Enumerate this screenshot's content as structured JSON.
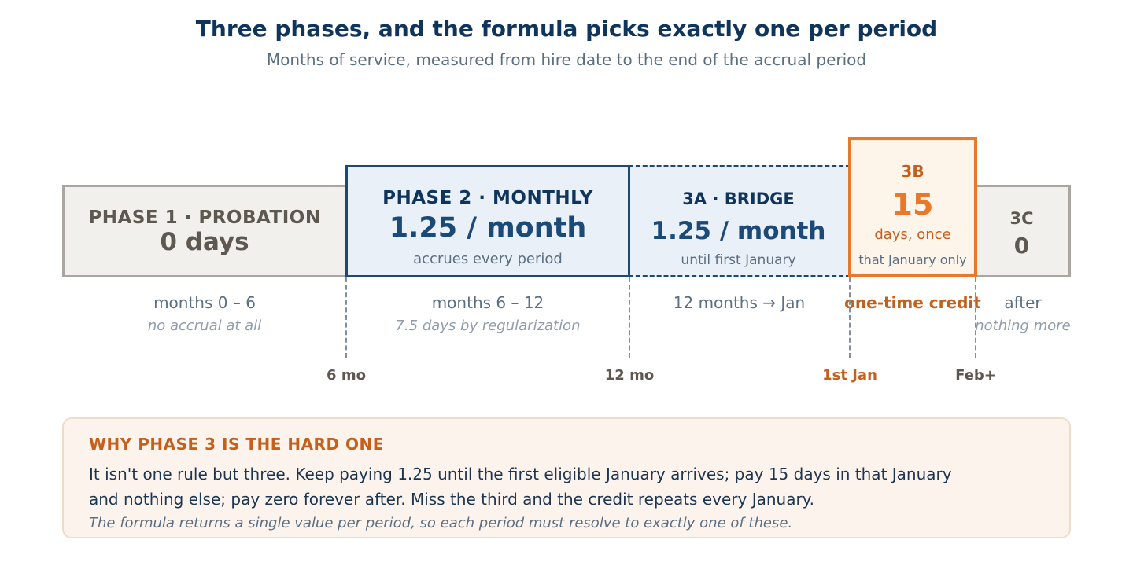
{
  "title": "Three phases, and the formula picks exactly one per period",
  "subtitle": "Months of service, measured from hire date to the end of the accrual period",
  "phases": {
    "phase1": {
      "label": "PHASE 1 · PROBATION",
      "value": "0 days",
      "range": "months 0 – 6",
      "note": "no accrual at all"
    },
    "phase2": {
      "label": "PHASE 2 · MONTHLY",
      "value": "1.25 / month",
      "detail": "accrues every period",
      "range": "months 6 – 12",
      "note": "7.5 days by regularization"
    },
    "phase3a": {
      "label": "3A · BRIDGE",
      "value": "1.25 / month",
      "detail": "until first January",
      "range": "12 months → Jan"
    },
    "phase3b": {
      "label": "3B",
      "value": "15",
      "unit": "days, once",
      "detail": "that January only",
      "range": "one-time credit"
    },
    "phase3c": {
      "label": "3C",
      "value": "0",
      "range": "after",
      "note": "nothing more"
    }
  },
  "ticks": [
    "6 mo",
    "12 mo",
    "1st Jan",
    "Feb+"
  ],
  "callout": {
    "title": "WHY PHASE 3 IS THE HARD ONE",
    "body": "It isn't one rule but three. Keep paying 1.25 until the first eligible January arrives; pay 15 days in that January and nothing else; pay zero forever after. Miss the third and the credit repeats every January.",
    "note": "The formula returns a single value per period, so each period must resolve to exactly one of these."
  },
  "colors": {
    "navy": "#0f355c",
    "blue": "#1b4a78",
    "blue_fill": "#eaf0f8",
    "orange": "#e8782a",
    "orange_dark": "#c4601c",
    "grey_fill": "#f1f0ed",
    "grey_border": "#aaa59f"
  }
}
